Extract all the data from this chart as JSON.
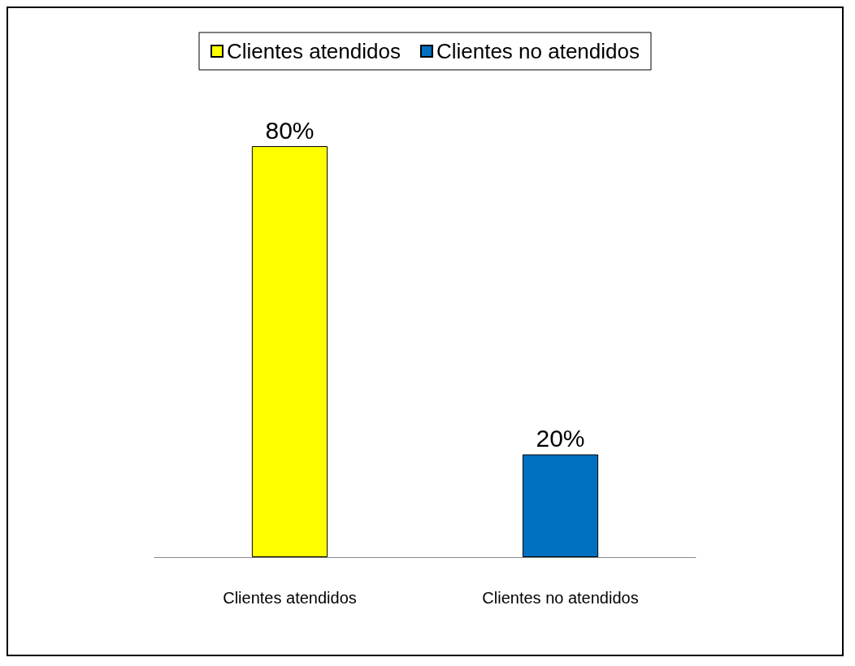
{
  "chart_data": {
    "type": "bar",
    "categories": [
      "Clientes atendidos",
      "Clientes no atendidos"
    ],
    "series": [
      {
        "name": "Clientes atendidos",
        "color": "#ffff00",
        "values": [
          80,
          null
        ],
        "value_labels": [
          "80%",
          null
        ]
      },
      {
        "name": "Clientes no atendidos",
        "color": "#0070c0",
        "values": [
          null,
          20
        ],
        "value_labels": [
          null,
          "20%"
        ]
      }
    ],
    "legend": "top",
    "grid": false
  }
}
